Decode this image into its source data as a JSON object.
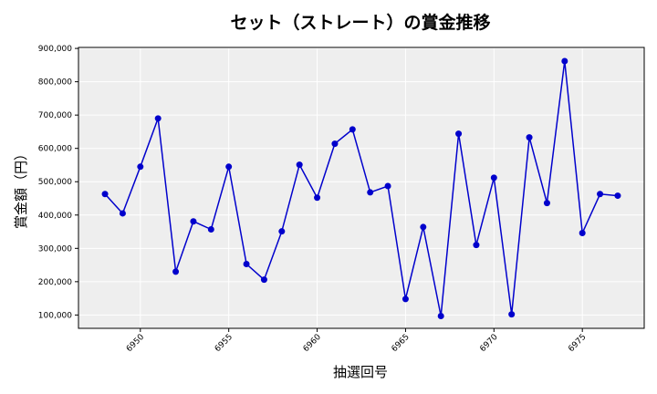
{
  "chart_data": {
    "type": "line",
    "title": "セット（ストレート）の賞金推移",
    "xlabel": "抽選回号",
    "ylabel": "賞金額（円）",
    "x": [
      6948,
      6949,
      6950,
      6951,
      6952,
      6953,
      6954,
      6955,
      6956,
      6957,
      6958,
      6959,
      6960,
      6961,
      6962,
      6963,
      6964,
      6965,
      6966,
      6967,
      6968,
      6969,
      6970,
      6971,
      6972,
      6973,
      6974,
      6975,
      6976,
      6977
    ],
    "series": [
      {
        "values": [
          463000,
          405000,
          545000,
          690000,
          230000,
          381000,
          357000,
          545000,
          253000,
          206000,
          351000,
          551000,
          452000,
          614000,
          657000,
          468000,
          487000,
          148000,
          364000,
          97000,
          644000,
          310000,
          512000,
          102000,
          633000,
          436000,
          862000,
          346000,
          463000,
          458000
        ],
        "color": "#0000cc"
      }
    ],
    "xlim": [
      6946.5,
      6978.5
    ],
    "ylim": [
      60000,
      903000
    ],
    "xticks": [
      6950,
      6955,
      6960,
      6965,
      6970,
      6975
    ],
    "yticks": [
      100000,
      200000,
      300000,
      400000,
      500000,
      600000,
      700000,
      800000,
      900000
    ],
    "ytick_labels": [
      "100,000",
      "200,000",
      "300,000",
      "400,000",
      "500,000",
      "600,000",
      "700,000",
      "800,000",
      "900,000"
    ],
    "grid": true,
    "plot_background": "#eeeeee"
  }
}
